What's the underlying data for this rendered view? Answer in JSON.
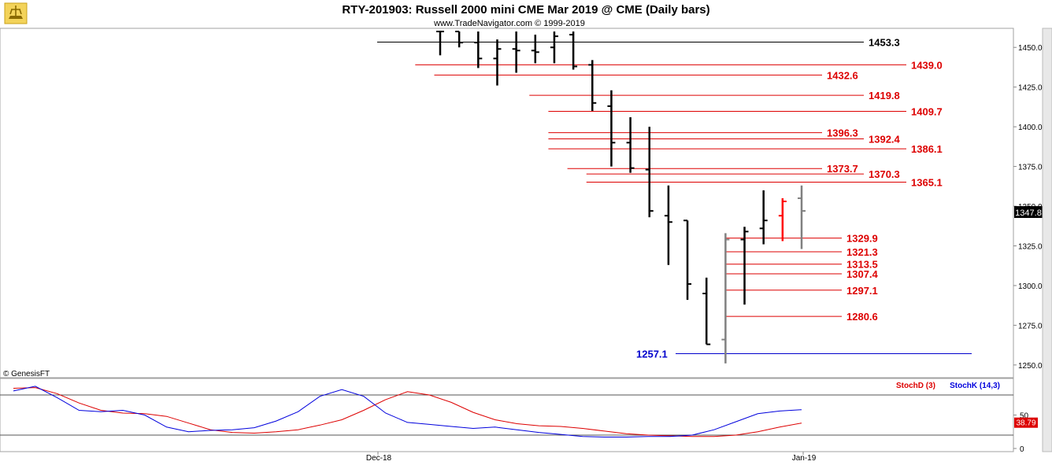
{
  "chart_data": [
    {
      "type": "ohlc",
      "title": "RTY-201903:  Russell 2000 mini CME Mar 2019 @ CME  (Daily bars)",
      "subtitle": "www.TradeNavigator.com © 1999-2019",
      "copyright": "© GenesisFT",
      "ylim": [
        1242,
        1462
      ],
      "yticks": [
        "1250.0",
        "1275.0",
        "1300.0",
        "1325.0",
        "1350.0",
        "1375.0",
        "1400.0",
        "1425.0",
        "1450.0"
      ],
      "ytick_values": [
        1250,
        1275,
        1300,
        1325,
        1350,
        1375,
        1400,
        1425,
        1450
      ],
      "last_price": "1347.8",
      "x_labels": [
        "Dec-18",
        "Jan-19"
      ],
      "bars": [
        {
          "o": 1460,
          "h": 1460,
          "l": 1445,
          "c": 1460,
          "color": "#000000"
        },
        {
          "o": 1460,
          "h": 1460,
          "l": 1450,
          "c": 1453,
          "color": "#000000"
        },
        {
          "o": 1453,
          "h": 1460,
          "l": 1437,
          "c": 1443,
          "color": "#000000"
        },
        {
          "o": 1443,
          "h": 1455,
          "l": 1426,
          "c": 1449,
          "color": "#000000"
        },
        {
          "o": 1449,
          "h": 1460,
          "l": 1434,
          "c": 1448,
          "color": "#000000"
        },
        {
          "o": 1448,
          "h": 1458,
          "l": 1440,
          "c": 1447,
          "color": "#000000"
        },
        {
          "o": 1450,
          "h": 1460,
          "l": 1440,
          "c": 1457,
          "color": "#000000"
        },
        {
          "o": 1458,
          "h": 1460,
          "l": 1436,
          "c": 1438,
          "color": "#000000"
        },
        {
          "o": 1439,
          "h": 1442,
          "l": 1410,
          "c": 1415,
          "color": "#000000"
        },
        {
          "o": 1413,
          "h": 1423,
          "l": 1375,
          "c": 1390,
          "color": "#000000"
        },
        {
          "o": 1390,
          "h": 1406,
          "l": 1371,
          "c": 1374,
          "color": "#000000"
        },
        {
          "o": 1373,
          "h": 1400,
          "l": 1343,
          "c": 1347,
          "color": "#000000"
        },
        {
          "o": 1344,
          "h": 1363,
          "l": 1313,
          "c": 1340,
          "color": "#000000"
        },
        {
          "o": 1341,
          "h": 1341,
          "l": 1291,
          "c": 1301,
          "color": "#000000"
        },
        {
          "o": 1295,
          "h": 1305,
          "l": 1263,
          "c": 1263,
          "color": "#000000"
        },
        {
          "o": 1266,
          "h": 1333,
          "l": 1251,
          "c": 1329,
          "color": "#808080"
        },
        {
          "o": 1329,
          "h": 1337,
          "l": 1288,
          "c": 1334,
          "color": "#000000"
        },
        {
          "o": 1336,
          "h": 1360,
          "l": 1326,
          "c": 1341,
          "color": "#000000"
        },
        {
          "o": 1344,
          "h": 1355,
          "l": 1328,
          "c": 1353,
          "color": "#ff0000"
        },
        {
          "o": 1355,
          "h": 1363,
          "l": 1323,
          "c": 1347,
          "color": "#808080"
        }
      ],
      "levels": [
        {
          "label": "1453.3",
          "value": 1453.3,
          "color": "#000000"
        },
        {
          "label": "1439.0",
          "value": 1439.0,
          "color": "#dd0000"
        },
        {
          "label": "1432.6",
          "value": 1432.6,
          "color": "#dd0000"
        },
        {
          "label": "1419.8",
          "value": 1419.8,
          "color": "#dd0000"
        },
        {
          "label": "1409.7",
          "value": 1409.7,
          "color": "#dd0000"
        },
        {
          "label": "1396.3",
          "value": 1396.3,
          "color": "#dd0000"
        },
        {
          "label": "1392.4",
          "value": 1392.4,
          "color": "#dd0000"
        },
        {
          "label": "1386.1",
          "value": 1386.1,
          "color": "#dd0000"
        },
        {
          "label": "1373.7",
          "value": 1373.7,
          "color": "#dd0000"
        },
        {
          "label": "1370.3",
          "value": 1370.3,
          "color": "#dd0000"
        },
        {
          "label": "1365.1",
          "value": 1365.1,
          "color": "#dd0000"
        },
        {
          "label": "1329.9",
          "value": 1329.9,
          "color": "#dd0000"
        },
        {
          "label": "1321.3",
          "value": 1321.3,
          "color": "#dd0000"
        },
        {
          "label": "1313.5",
          "value": 1313.5,
          "color": "#dd0000"
        },
        {
          "label": "1307.4",
          "value": 1307.4,
          "color": "#dd0000"
        },
        {
          "label": "1297.1",
          "value": 1297.1,
          "color": "#dd0000"
        },
        {
          "label": "1280.6",
          "value": 1280.6,
          "color": "#dd0000"
        },
        {
          "label": "1257.1",
          "value": 1257.1,
          "color": "#0000cc"
        }
      ]
    },
    {
      "type": "line",
      "ylim": [
        0,
        100
      ],
      "yticks": [
        "50",
        "0"
      ],
      "ytick_values": [
        50,
        0
      ],
      "guides": [
        80,
        20
      ],
      "series": [
        {
          "name": "StochD (3)",
          "color": "#dd0000",
          "last": "38.79",
          "values": [
            90,
            91,
            82,
            68,
            57,
            53,
            52,
            48,
            38,
            28,
            24,
            23,
            25,
            28,
            35,
            43,
            57,
            73,
            85,
            80,
            69,
            54,
            43,
            37,
            34,
            33,
            30,
            26,
            22,
            20,
            19,
            18,
            18,
            20,
            25,
            32,
            38
          ]
        },
        {
          "name": "StochK (14,3)",
          "color": "#0000dd",
          "last": "",
          "values": [
            86,
            93,
            76,
            57,
            55,
            57,
            50,
            32,
            25,
            27,
            28,
            31,
            41,
            55,
            78,
            88,
            78,
            53,
            39,
            36,
            33,
            30,
            32,
            28,
            24,
            21,
            18,
            17,
            17,
            18,
            18,
            20,
            28,
            40,
            52,
            56,
            58
          ]
        }
      ]
    }
  ]
}
